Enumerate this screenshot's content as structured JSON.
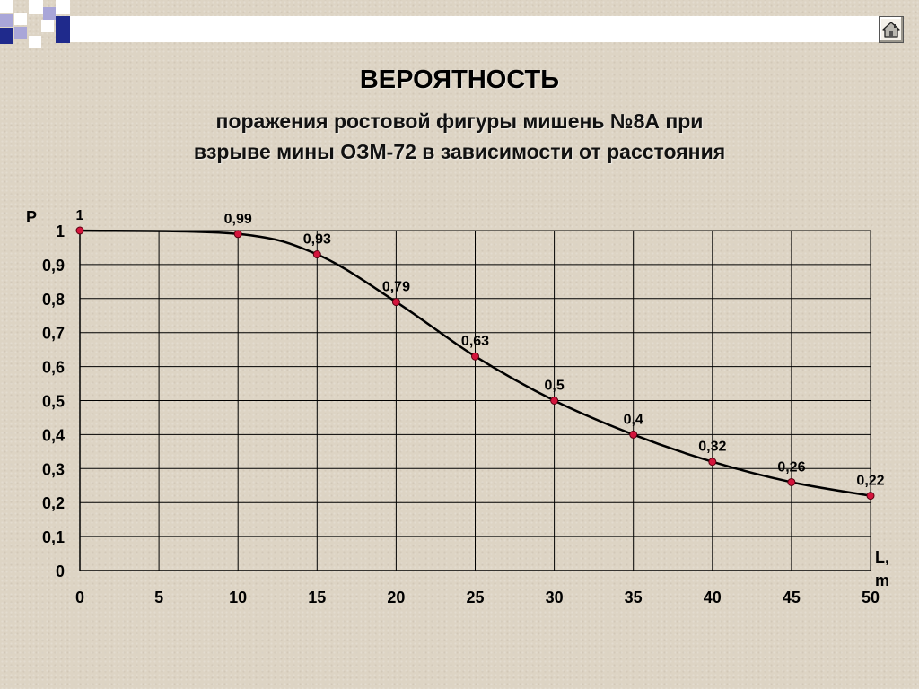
{
  "title": "ВЕРОЯТНОСТЬ",
  "subtitle_line1": "поражения ростовой фигуры мишень №8А при",
  "subtitle_line2": "взрыве мины ОЗМ-72 в зависимости от расстояния",
  "home_button": {
    "icon": "home-icon"
  },
  "colors": {
    "background": "#ddd4c4",
    "decor_blue": "#1f2a8c",
    "decor_light": "#ffffff",
    "decor_lavender": "#a9a6d8",
    "line": "#000000",
    "marker": "#d4143c",
    "grid": "#000000"
  },
  "chart_data": {
    "type": "line",
    "x": [
      0,
      10,
      15,
      20,
      25,
      30,
      35,
      40,
      45,
      50
    ],
    "series": [
      {
        "values": [
          1,
          0.99,
          0.93,
          0.79,
          0.63,
          0.5,
          0.4,
          0.32,
          0.26,
          0.22
        ]
      }
    ],
    "data_labels": [
      "1",
      "0,99",
      "0,93",
      "0,79",
      "0,63",
      "0,5",
      "0,4",
      "0,32",
      "0,26",
      "0,22"
    ],
    "xticks": [
      0,
      5,
      10,
      15,
      20,
      25,
      30,
      35,
      40,
      45,
      50
    ],
    "xtick_labels": [
      "0",
      "5",
      "10",
      "15",
      "20",
      "25",
      "30",
      "35",
      "40",
      "45",
      "50"
    ],
    "yticks": [
      0,
      0.1,
      0.2,
      0.3,
      0.4,
      0.5,
      0.6,
      0.7,
      0.8,
      0.9,
      1
    ],
    "ytick_labels": [
      "0",
      "0,1",
      "0,2",
      "0,3",
      "0,4",
      "0,5",
      "0,6",
      "0,7",
      "0,8",
      "0,9",
      "1"
    ],
    "xlim": [
      0,
      50
    ],
    "ylim": [
      0,
      1
    ],
    "xlabel_line1": "L,",
    "xlabel_line2": "m",
    "ylabel": "P",
    "grid": true,
    "smooth": true,
    "markers": "circle"
  }
}
